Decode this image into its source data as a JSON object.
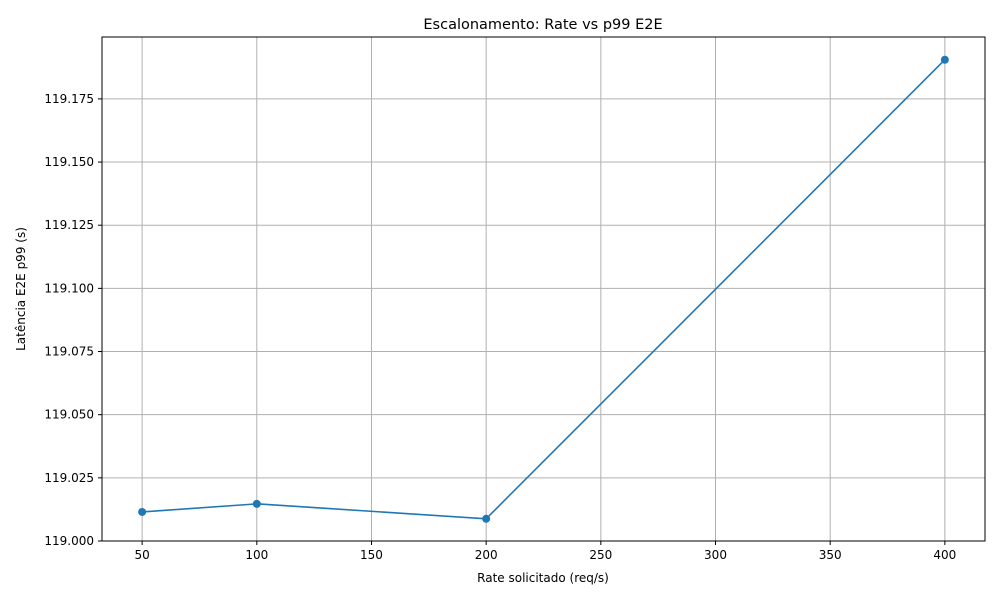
{
  "chart_data": {
    "type": "line",
    "title": "Escalonamento: Rate vs p99 E2E",
    "xlabel": "Rate solicitado (req/s)",
    "ylabel": "Latência E2E p99 (s)",
    "x": [
      50,
      100,
      200,
      400
    ],
    "series": [
      {
        "values": [
          119.0115,
          119.0147,
          119.0088,
          119.1905
        ]
      }
    ],
    "xlim": [
      32.5,
      417.5
    ],
    "ylim": [
      119.0,
      119.1995
    ],
    "xticks": [
      50,
      100,
      150,
      200,
      250,
      300,
      350,
      400
    ],
    "yticks": [
      "119.000",
      "119.025",
      "119.050",
      "119.075",
      "119.100",
      "119.125",
      "119.150",
      "119.175"
    ],
    "grid": true,
    "markers": true,
    "line_color": "#1f77b4",
    "grid_color": "#b0b0b0"
  }
}
